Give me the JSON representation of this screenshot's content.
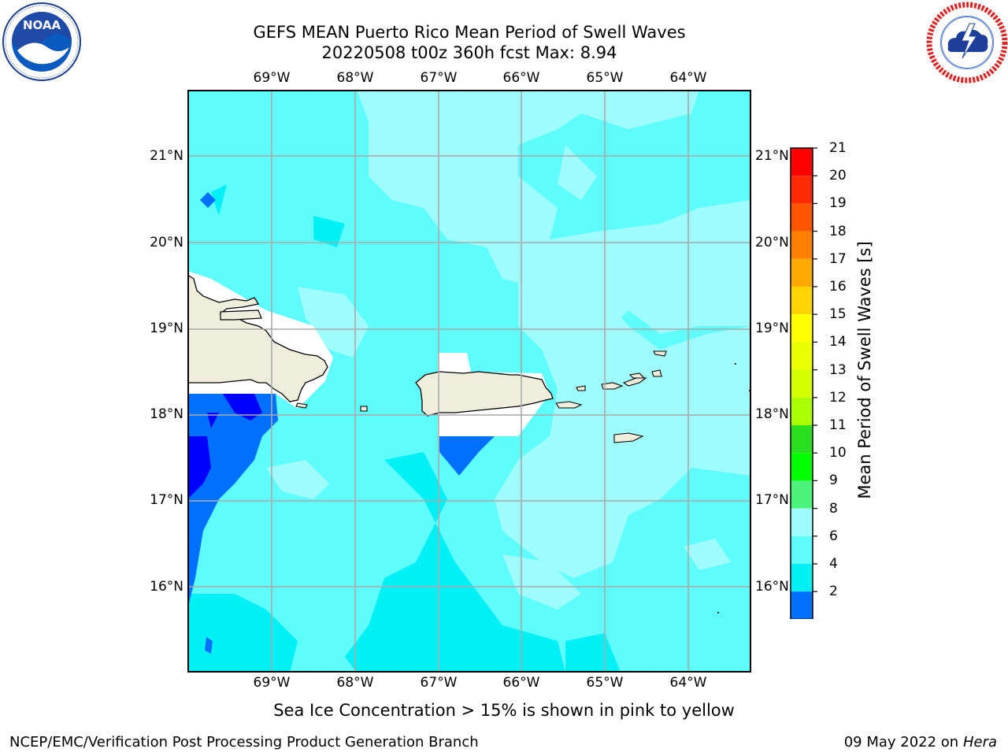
{
  "title": {
    "line1": "GEFS MEAN Puerto Rico Mean Period of Swell Waves",
    "line2": "20220508 t00z 360h fcst   Max: 8.94"
  },
  "logos": {
    "left": {
      "name": "noaa-logo",
      "text": "NOAA",
      "ring_text": "NATIONAL OCEANIC AND ATMOSPHERIC ADMINISTRATION · U.S. DEPARTMENT OF COMMERCE"
    },
    "right": {
      "name": "nws-logo",
      "ring_text": "NATIONAL WEATHER SERVICE"
    }
  },
  "map": {
    "lon_labels": [
      "69°W",
      "68°W",
      "67°W",
      "66°W",
      "65°W",
      "64°W"
    ],
    "lat_labels": [
      "21°N",
      "20°N",
      "19°N",
      "18°N",
      "17°N",
      "16°N"
    ],
    "lon_range": [
      -70.0,
      -63.25
    ],
    "lat_range": [
      15.0,
      21.75
    ],
    "grid": true,
    "land_color": "#efeddc",
    "background_band_color": "#5ffcfc"
  },
  "colorbar": {
    "title": "Mean Period of Swell Waves [s]",
    "ticks": [
      "21",
      "20",
      "19",
      "18",
      "17",
      "16",
      "15",
      "14",
      "13",
      "12",
      "11",
      "10",
      "9",
      "8",
      "6",
      "4",
      "2"
    ],
    "colors_top_to_bottom": [
      "#ff0000",
      "#ff2a00",
      "#ff5400",
      "#ff7f00",
      "#ffaa00",
      "#ffd400",
      "#ffff00",
      "#eaff00",
      "#d4ff00",
      "#aaff00",
      "#2adf1f",
      "#00ff00",
      "#4df27a",
      "#9ffcfc",
      "#5ffcfc",
      "#00f0f7",
      "#0070ff"
    ],
    "under_color": "#0000ff"
  },
  "note": "Sea Ice Concentration > 15% is shown in pink to yellow",
  "footer": {
    "left": "NCEP/EMC/Verification Post Processing Product Generation Branch",
    "right_date": "09 May 2022 on",
    "right_host": "Hera"
  }
}
